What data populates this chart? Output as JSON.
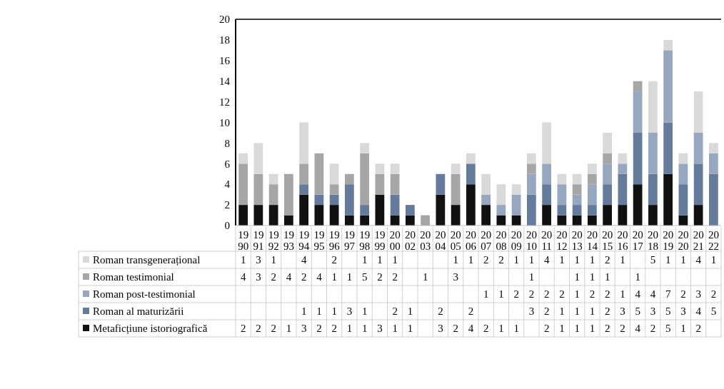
{
  "chart_data": {
    "type": "bar",
    "stacked": true,
    "data_labels": true,
    "legend": "bottom",
    "grid": false,
    "categories": [
      "1990",
      "1991",
      "1992",
      "1993",
      "1994",
      "1995",
      "1996",
      "1997",
      "1998",
      "1999",
      "2000",
      "2002",
      "2003",
      "2004",
      "2005",
      "2006",
      "2007",
      "2008",
      "2009",
      "2010",
      "2011",
      "2012",
      "2013",
      "2014",
      "2015",
      "2016",
      "2017",
      "2018",
      "2019",
      "2020",
      "2021",
      "2022"
    ],
    "ylim": [
      0,
      20
    ],
    "yticks": [
      0,
      2,
      4,
      6,
      8,
      10,
      12,
      14,
      16,
      18,
      20
    ],
    "series": [
      {
        "name": "Metaficțiune istoriografică",
        "color": "#111111",
        "values": [
          2,
          2,
          2,
          1,
          3,
          2,
          2,
          1,
          1,
          3,
          1,
          1,
          null,
          3,
          2,
          4,
          2,
          1,
          1,
          null,
          2,
          1,
          1,
          1,
          2,
          2,
          4,
          2,
          5,
          1,
          2,
          null
        ]
      },
      {
        "name": "Roman al maturizării",
        "color": "#657b9b",
        "values": [
          null,
          null,
          null,
          null,
          1,
          1,
          1,
          3,
          1,
          null,
          2,
          1,
          null,
          2,
          null,
          2,
          null,
          null,
          null,
          3,
          2,
          1,
          1,
          1,
          2,
          3,
          5,
          3,
          5,
          3,
          4,
          5
        ]
      },
      {
        "name": "Roman post-testimonial",
        "color": "#97a7bf",
        "values": [
          null,
          null,
          null,
          null,
          null,
          null,
          null,
          null,
          null,
          null,
          null,
          null,
          null,
          null,
          null,
          null,
          1,
          1,
          2,
          2,
          2,
          2,
          1,
          2,
          2,
          1,
          4,
          4,
          7,
          2,
          3,
          2
        ]
      },
      {
        "name": "Roman testimonial",
        "color": "#a6a6a6",
        "values": [
          4,
          3,
          2,
          4,
          2,
          4,
          1,
          1,
          5,
          2,
          2,
          null,
          1,
          null,
          3,
          null,
          null,
          null,
          null,
          1,
          null,
          null,
          1,
          1,
          1,
          null,
          1,
          null,
          null,
          null,
          null,
          null
        ]
      },
      {
        "name": "Roman transgenerațional",
        "color": "#d9d9d9",
        "values": [
          1,
          3,
          1,
          null,
          4,
          null,
          2,
          null,
          1,
          1,
          1,
          null,
          null,
          null,
          1,
          1,
          2,
          2,
          1,
          1,
          4,
          1,
          1,
          1,
          2,
          1,
          null,
          5,
          1,
          1,
          4,
          1
        ]
      }
    ]
  }
}
